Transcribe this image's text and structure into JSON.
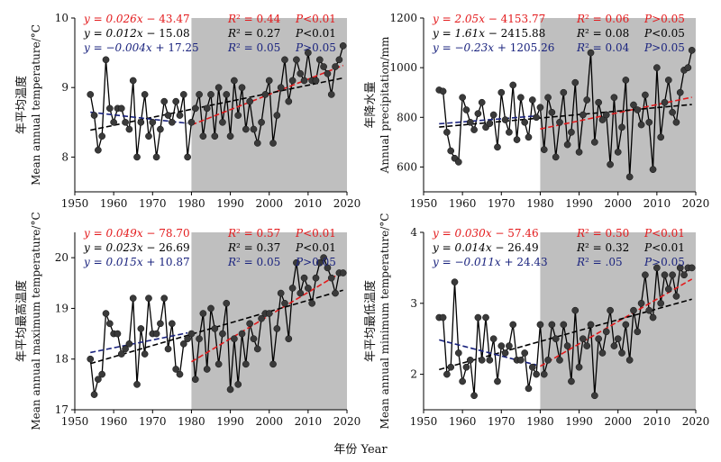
{
  "figure": {
    "xlabel": "年份 Year"
  },
  "colors": {
    "shade": "#bfbfbf",
    "series": "#000000",
    "marker": "#3a3a3a",
    "trend_all": "#000000",
    "trend_post": "#e31a1c",
    "trend_pre": "#1a237e"
  },
  "chart_data": [
    {
      "type": "line",
      "ylabel_cn": "年平均温度",
      "ylabel_en": "Mean annual temperature/°C",
      "xlim": [
        1950,
        2020
      ],
      "ylim": [
        7.5,
        10
      ],
      "xticks": [
        1950,
        1960,
        1970,
        1980,
        1990,
        2000,
        2010,
        2020
      ],
      "yticks": [
        8,
        9,
        10
      ],
      "shade_from": 1980,
      "x": [
        1954,
        1955,
        1956,
        1957,
        1958,
        1959,
        1960,
        1961,
        1962,
        1963,
        1964,
        1965,
        1966,
        1967,
        1968,
        1969,
        1970,
        1971,
        1972,
        1973,
        1974,
        1975,
        1976,
        1977,
        1978,
        1979,
        1980,
        1981,
        1982,
        1983,
        1984,
        1985,
        1986,
        1987,
        1988,
        1989,
        1990,
        1991,
        1992,
        1993,
        1994,
        1995,
        1996,
        1997,
        1998,
        1999,
        2000,
        2001,
        2002,
        2003,
        2004,
        2005,
        2006,
        2007,
        2008,
        2009,
        2010,
        2011,
        2012,
        2013,
        2014,
        2015,
        2016,
        2017,
        2018,
        2019
      ],
      "values": [
        8.9,
        8.6,
        8.1,
        8.3,
        9.4,
        8.7,
        8.5,
        8.7,
        8.7,
        8.5,
        8.4,
        9.1,
        8.0,
        8.5,
        8.9,
        8.3,
        8.5,
        8.0,
        8.4,
        8.8,
        8.6,
        8.5,
        8.8,
        8.6,
        8.9,
        8.0,
        8.5,
        8.7,
        8.9,
        8.3,
        8.7,
        8.9,
        8.3,
        9.0,
        8.5,
        8.9,
        8.3,
        9.1,
        8.6,
        9.0,
        8.4,
        8.8,
        8.4,
        8.2,
        8.5,
        8.9,
        9.1,
        8.2,
        8.6,
        9.0,
        9.4,
        8.8,
        9.1,
        9.4,
        9.2,
        9.1,
        9.5,
        9.1,
        9.1,
        9.4,
        9.3,
        9.2,
        8.9,
        9.3,
        9.4,
        9.6
      ],
      "trends": [
        {
          "group": "post",
          "range": [
            1980,
            2019
          ],
          "eq": "y = 0.026x − 43.47",
          "r2": "R² = 0.44",
          "p": "P<0.01"
        },
        {
          "group": "all",
          "range": [
            1954,
            2019
          ],
          "eq": "y = 0.012x − 15.08",
          "r2": "R² = 0.27",
          "p": "P<0.01"
        },
        {
          "group": "pre",
          "range": [
            1954,
            1979
          ],
          "eq": "y = −0.004x + 17.25",
          "r2": "R² = 0.05",
          "p": "P>0.05"
        }
      ]
    },
    {
      "type": "line",
      "ylabel_cn": "年降水量",
      "ylabel_en": "Annual precipitation/mm",
      "xlim": [
        1950,
        2020
      ],
      "ylim": [
        500,
        1200
      ],
      "xticks": [
        1950,
        1960,
        1970,
        1980,
        1990,
        2000,
        2010,
        2020
      ],
      "yticks": [
        600,
        800,
        1000,
        1200
      ],
      "shade_from": 1980,
      "x": [
        1954,
        1955,
        1956,
        1957,
        1958,
        1959,
        1960,
        1961,
        1962,
        1963,
        1964,
        1965,
        1966,
        1967,
        1968,
        1969,
        1970,
        1971,
        1972,
        1973,
        1974,
        1975,
        1976,
        1977,
        1978,
        1979,
        1980,
        1981,
        1982,
        1983,
        1984,
        1985,
        1986,
        1987,
        1988,
        1989,
        1990,
        1991,
        1992,
        1993,
        1994,
        1995,
        1996,
        1997,
        1998,
        1999,
        2000,
        2001,
        2002,
        2003,
        2004,
        2005,
        2006,
        2007,
        2008,
        2009,
        2010,
        2011,
        2012,
        2013,
        2014,
        2015,
        2016,
        2017,
        2018,
        2019
      ],
      "values": [
        910,
        905,
        740,
        665,
        635,
        620,
        880,
        830,
        780,
        750,
        815,
        860,
        760,
        775,
        810,
        680,
        900,
        790,
        740,
        930,
        710,
        880,
        780,
        720,
        870,
        800,
        840,
        670,
        880,
        820,
        640,
        780,
        900,
        690,
        740,
        940,
        660,
        810,
        870,
        1060,
        700,
        860,
        790,
        810,
        610,
        880,
        660,
        760,
        950,
        560,
        850,
        830,
        770,
        890,
        780,
        590,
        1000,
        720,
        860,
        950,
        820,
        780,
        900,
        990,
        1000,
        1070
      ],
      "trends": [
        {
          "group": "post",
          "range": [
            1980,
            2019
          ],
          "eq": "y = 2.05x − 4153.77",
          "r2": "R² = 0.06",
          "p": "P>0.05"
        },
        {
          "group": "all",
          "range": [
            1954,
            2019
          ],
          "eq": "y = 1.61x − 2415.88",
          "r2": "R² = 0.08",
          "p": "P<0.05"
        },
        {
          "group": "pre",
          "range": [
            1954,
            1979
          ],
          "eq": "y = −0.23x + 1205.26",
          "r2": "R² = 0.04",
          "p": "P>0.05"
        }
      ]
    },
    {
      "type": "line",
      "ylabel_cn": "年平均最高温度",
      "ylabel_en": "Mean annual maximum temperature/°C",
      "xlim": [
        1950,
        2020
      ],
      "ylim": [
        17,
        20.5
      ],
      "xticks": [
        1950,
        1960,
        1970,
        1980,
        1990,
        2000,
        2010,
        2020
      ],
      "yticks": [
        17,
        18,
        19,
        20
      ],
      "shade_from": 1980,
      "x": [
        1954,
        1955,
        1956,
        1957,
        1958,
        1959,
        1960,
        1961,
        1962,
        1963,
        1964,
        1965,
        1966,
        1967,
        1968,
        1969,
        1970,
        1971,
        1972,
        1973,
        1974,
        1975,
        1976,
        1977,
        1978,
        1979,
        1980,
        1981,
        1982,
        1983,
        1984,
        1985,
        1986,
        1987,
        1988,
        1989,
        1990,
        1991,
        1992,
        1993,
        1994,
        1995,
        1996,
        1997,
        1998,
        1999,
        2000,
        2001,
        2002,
        2003,
        2004,
        2005,
        2006,
        2007,
        2008,
        2009,
        2010,
        2011,
        2012,
        2013,
        2014,
        2015,
        2016,
        2017,
        2018,
        2019
      ],
      "values": [
        18.0,
        17.3,
        17.6,
        17.7,
        18.9,
        18.7,
        18.5,
        18.5,
        18.1,
        18.2,
        18.3,
        19.2,
        17.5,
        18.6,
        18.1,
        19.2,
        18.5,
        18.5,
        18.7,
        19.2,
        18.2,
        18.7,
        17.8,
        17.7,
        18.3,
        18.4,
        18.5,
        17.6,
        18.4,
        18.9,
        17.8,
        19.0,
        18.6,
        17.9,
        18.5,
        19.1,
        17.4,
        18.4,
        17.5,
        18.5,
        17.9,
        18.7,
        18.4,
        18.2,
        18.8,
        18.9,
        18.9,
        17.9,
        18.6,
        19.3,
        19.1,
        18.4,
        19.4,
        19.9,
        19.3,
        19.6,
        19.4,
        19.1,
        19.6,
        19.9,
        20.0,
        19.8,
        19.6,
        19.3,
        19.7,
        19.7
      ],
      "trends": [
        {
          "group": "post",
          "range": [
            1980,
            2019
          ],
          "eq": "y = 0.049x − 78.70",
          "r2": "R² = 0.57",
          "p": "P<0.01"
        },
        {
          "group": "all",
          "range": [
            1954,
            2019
          ],
          "eq": "y = 0.023x − 26.69",
          "r2": "R² = 0.37",
          "p": "P<0.01"
        },
        {
          "group": "pre",
          "range": [
            1954,
            1979
          ],
          "eq": "y = 0.015x + 10.87",
          "r2": "R² = 0.05",
          "p": "P>0.05"
        }
      ]
    },
    {
      "type": "line",
      "ylabel_cn": "年平均最低温度",
      "ylabel_en": "Mean annual minimum temperature/°C",
      "xlim": [
        1950,
        2020
      ],
      "ylim": [
        1.5,
        4
      ],
      "xticks": [
        1950,
        1960,
        1970,
        1980,
        1990,
        2000,
        2010,
        2020
      ],
      "yticks": [
        2,
        3,
        4
      ],
      "shade_from": 1980,
      "x": [
        1954,
        1955,
        1956,
        1957,
        1958,
        1959,
        1960,
        1961,
        1962,
        1963,
        1964,
        1965,
        1966,
        1967,
        1968,
        1969,
        1970,
        1971,
        1972,
        1973,
        1974,
        1975,
        1976,
        1977,
        1978,
        1979,
        1980,
        1981,
        1982,
        1983,
        1984,
        1985,
        1986,
        1987,
        1988,
        1989,
        1990,
        1991,
        1992,
        1993,
        1994,
        1995,
        1996,
        1997,
        1998,
        1999,
        2000,
        2001,
        2002,
        2003,
        2004,
        2005,
        2006,
        2007,
        2008,
        2009,
        2010,
        2011,
        2012,
        2013,
        2014,
        2015,
        2016,
        2017,
        2018,
        2019
      ],
      "values": [
        2.8,
        2.8,
        2.0,
        2.1,
        3.3,
        2.3,
        1.9,
        2.1,
        2.2,
        1.7,
        2.8,
        2.2,
        2.8,
        2.2,
        2.5,
        1.9,
        2.4,
        2.3,
        2.4,
        2.7,
        2.2,
        2.2,
        2.3,
        1.8,
        2.1,
        2.0,
        2.7,
        2.0,
        2.2,
        2.7,
        2.5,
        2.2,
        2.7,
        2.4,
        1.9,
        2.9,
        2.1,
        2.5,
        2.4,
        2.7,
        1.7,
        2.5,
        2.3,
        2.6,
        2.9,
        2.4,
        2.5,
        2.3,
        2.7,
        2.2,
        2.9,
        2.6,
        3.0,
        3.4,
        2.9,
        2.8,
        3.5,
        3.0,
        3.4,
        3.2,
        3.4,
        3.1,
        3.5,
        3.4,
        3.5,
        3.5
      ],
      "trends": [
        {
          "group": "post",
          "range": [
            1980,
            2019
          ],
          "eq": "y = 0.030x − 57.46",
          "r2": "R² = 0.50",
          "p": "P<0.01"
        },
        {
          "group": "all",
          "range": [
            1954,
            2019
          ],
          "eq": "y = 0.014x − 26.49",
          "r2": "R² = 0.32",
          "p": "P<0.01"
        },
        {
          "group": "pre",
          "range": [
            1954,
            1979
          ],
          "eq": "y = −0.011x + 24.43",
          "r2": "R² = .05",
          "p": "P>0.05"
        }
      ]
    }
  ]
}
